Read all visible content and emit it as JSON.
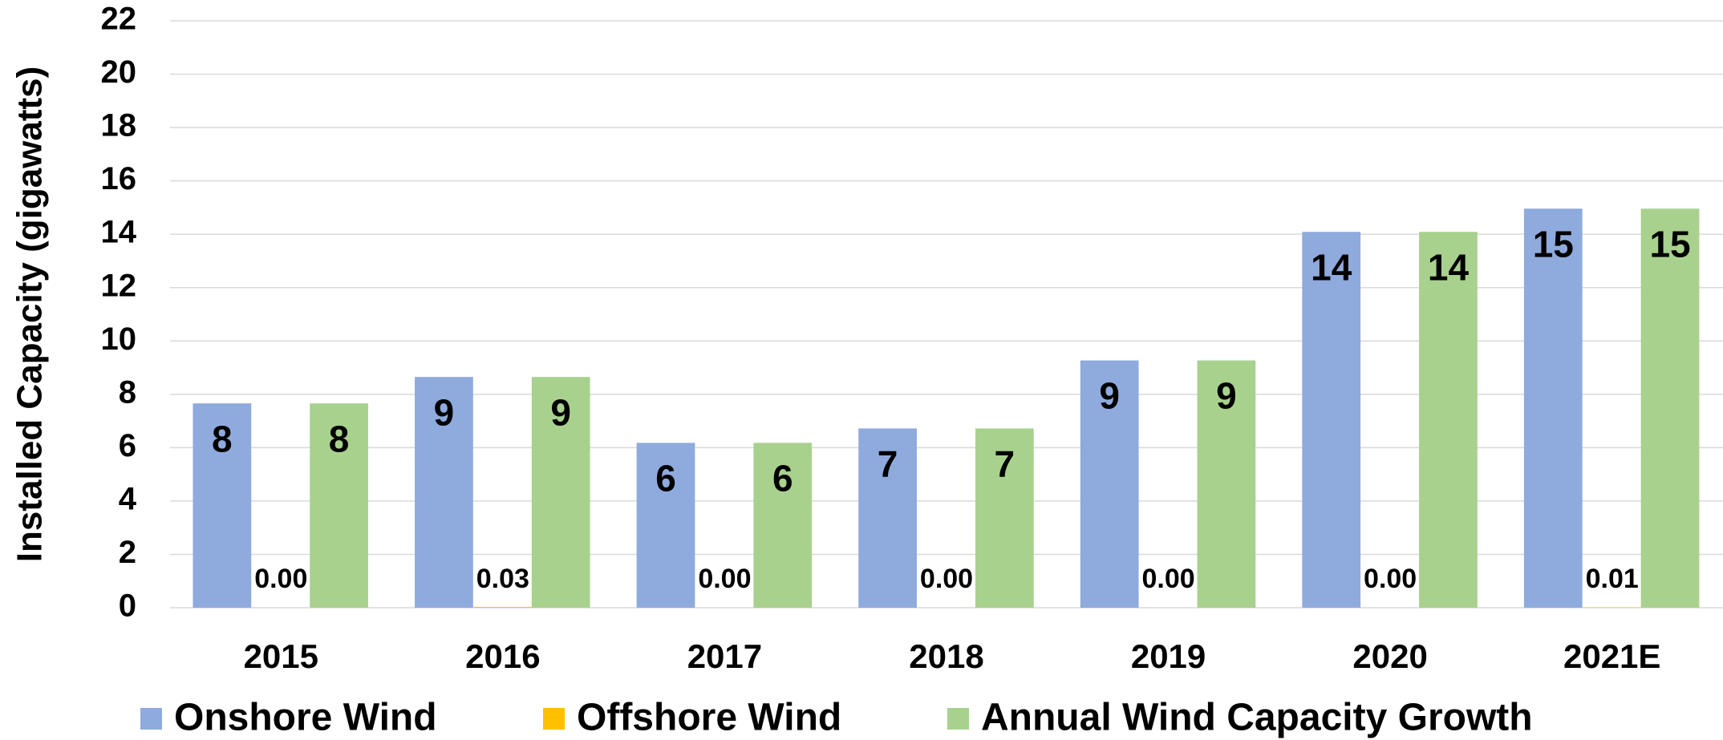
{
  "chart_data": {
    "type": "bar",
    "y_label": "Installed Capacity (gigawatts)",
    "categories": [
      "2015",
      "2016",
      "2017",
      "2018",
      "2019",
      "2020",
      "2021E"
    ],
    "series": [
      {
        "name": "Onshore Wind",
        "color": "#8faadc",
        "values": [
          7.66,
          8.65,
          6.18,
          6.72,
          9.27,
          14.09,
          14.96
        ],
        "value_labels": [
          "8",
          "9",
          "6",
          "7",
          "9",
          "14",
          "15"
        ]
      },
      {
        "name": "Offshore Wind",
        "color": "#ffc000",
        "values": [
          0,
          0.03,
          0,
          0,
          0,
          0,
          0.01
        ],
        "value_labels": [
          "0.00",
          "0.03",
          "0.00",
          "0.00",
          "0.00",
          "0.00",
          "0.01"
        ]
      },
      {
        "name": "Annual Wind Capacity Growth",
        "color": "#a9d18e",
        "values": [
          7.66,
          8.65,
          6.18,
          6.72,
          9.27,
          14.09,
          14.96
        ],
        "value_labels": [
          "8",
          "9",
          "6",
          "7",
          "9",
          "14",
          "15"
        ]
      }
    ],
    "ylim": [
      0,
      22
    ],
    "yticks": [
      0,
      2,
      4,
      6,
      8,
      10,
      12,
      14,
      16,
      18,
      20,
      22
    ],
    "grid": true,
    "legend": "bottom"
  }
}
